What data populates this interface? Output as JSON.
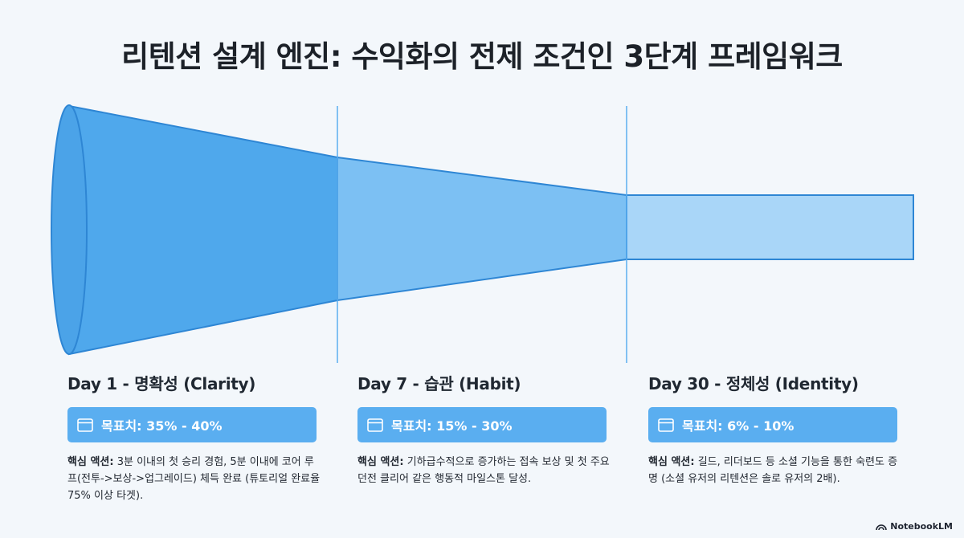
{
  "title": "리텐션 설계 엔진: 수익화의 전제 조건인 3단계 프레임워크",
  "stages": [
    {
      "heading": "Day 1 - 명확성 (Clarity)",
      "goal": "목표치: 35% - 40%",
      "action_label": "핵심 액션:",
      "action_text": " 3분 이내의 첫 승리 경험, 5분 이내에 코어 루프(전투->보상->업그레이드) 체득 완료 (튜토리얼 완료율 75% 이상 타겟).",
      "icon": "window-icon"
    },
    {
      "heading": "Day 7 - 습관 (Habit)",
      "goal": "목표치: 15% - 30%",
      "action_label": "핵심 액션:",
      "action_text": " 기하급수적으로 증가하는 접속 보상 및 첫 주요 던전 클리어 같은 행동적 마일스톤 달성.",
      "icon": "window-icon"
    },
    {
      "heading": "Day 30 - 정체성 (Identity)",
      "goal": "목표치: 6% - 10%",
      "action_label": "핵심 액션:",
      "action_text": " 길드, 리더보드 등 소셜 기능을 통한 숙련도 증명 (소셜 유저의 리텐션은 솔로 유저의 2배).",
      "icon": "window-icon"
    }
  ],
  "brand": "NotebookLM",
  "colors": {
    "funnel_stage1": "#4fa8ec",
    "funnel_stage2": "#7cc0f3",
    "funnel_stage3": "#a9d6f8",
    "funnel_stroke": "#2e86d4",
    "goal_bg": "#5aaef0"
  }
}
